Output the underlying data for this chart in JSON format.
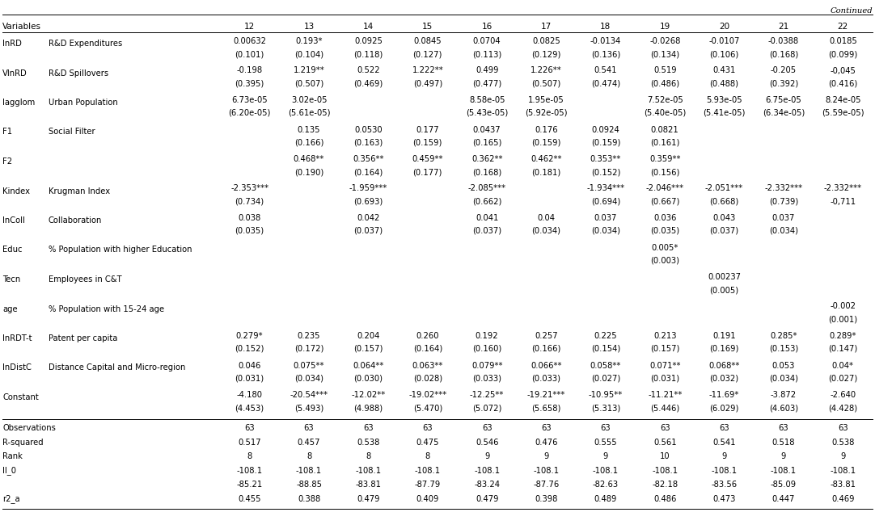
{
  "title": "Continued",
  "col_headers": [
    "12",
    "13",
    "14",
    "15",
    "16",
    "17",
    "18",
    "19",
    "20",
    "21",
    "22"
  ],
  "rows": [
    {
      "var": "lnRD",
      "label": "R&D Expenditures",
      "coef": [
        "0.00632",
        "0.193*",
        "0.0925",
        "0.0845",
        "0.0704",
        "0.0825",
        "-0.0134",
        "-0.0268",
        "-0.0107",
        "-0.0388",
        "0.0185"
      ],
      "se": [
        "(0.101)",
        "(0.104)",
        "(0.118)",
        "(0.127)",
        "(0.113)",
        "(0.129)",
        "(0.136)",
        "(0.134)",
        "(0.106)",
        "(0.168)",
        "(0.099)"
      ]
    },
    {
      "var": "VlnRD",
      "label": "R&D Spillovers",
      "coef": [
        "-0.198",
        "1.219**",
        "0.522",
        "1.222**",
        "0.499",
        "1.226**",
        "0.541",
        "0.519",
        "0.431",
        "-0.205",
        "-0,045"
      ],
      "se": [
        "(0.395)",
        "(0.507)",
        "(0.469)",
        "(0.497)",
        "(0.477)",
        "(0.507)",
        "(0.474)",
        "(0.486)",
        "(0.488)",
        "(0.392)",
        "(0.416)"
      ]
    },
    {
      "var": "lagglom",
      "label": "Urban Population",
      "coef": [
        "6.73e-05",
        "3.02e-05",
        "",
        "",
        "8.58e-05",
        "1.95e-05",
        "",
        "7.52e-05",
        "5.93e-05",
        "6.75e-05",
        "8.24e-05"
      ],
      "se": [
        "(6.20e-05)",
        "(5.61e-05)",
        "",
        "",
        "(5.43e-05)",
        "(5.92e-05)",
        "",
        "(5.40e-05)",
        "(5.41e-05)",
        "(6.34e-05)",
        "(5.59e-05)"
      ]
    },
    {
      "var": "F1",
      "label": "Social Filter",
      "coef": [
        "",
        "0.135",
        "0.0530",
        "0.177",
        "0.0437",
        "0.176",
        "0.0924",
        "0.0821",
        "",
        "",
        ""
      ],
      "se": [
        "",
        "(0.166)",
        "(0.163)",
        "(0.159)",
        "(0.165)",
        "(0.159)",
        "(0.159)",
        "(0.161)",
        "",
        "",
        ""
      ]
    },
    {
      "var": "F2",
      "label": "",
      "coef": [
        "",
        "0.468**",
        "0.356**",
        "0.459**",
        "0.362**",
        "0.462**",
        "0.353**",
        "0.359**",
        "",
        "",
        ""
      ],
      "se": [
        "",
        "(0.190)",
        "(0.164)",
        "(0.177)",
        "(0.168)",
        "(0.181)",
        "(0.152)",
        "(0.156)",
        "",
        "",
        ""
      ]
    },
    {
      "var": "Kindex",
      "label": "Krugman Index",
      "coef": [
        "-2.353***",
        "",
        "-1.959***",
        "",
        "-2.085***",
        "",
        "-1.934***",
        "-2.046***",
        "-2.051***",
        "-2.332***",
        "-2.332***"
      ],
      "se": [
        "(0.734)",
        "",
        "(0.693)",
        "",
        "(0.662)",
        "",
        "(0.694)",
        "(0.667)",
        "(0.668)",
        "(0.739)",
        "-0,711"
      ]
    },
    {
      "var": "lnColl",
      "label": "Collaboration",
      "coef": [
        "0.038",
        "",
        "0.042",
        "",
        "0.041",
        "0.04",
        "0.037",
        "0.036",
        "0.043",
        "0.037",
        ""
      ],
      "se": [
        "(0.035)",
        "",
        "(0.037)",
        "",
        "(0.037)",
        "(0.034)",
        "(0.034)",
        "(0.035)",
        "(0.037)",
        "(0.034)",
        ""
      ]
    },
    {
      "var": "Educ",
      "label": "% Population with higher Education",
      "coef": [
        "",
        "",
        "",
        "",
        "",
        "",
        "",
        "0.005*",
        "",
        "",
        ""
      ],
      "se": [
        "",
        "",
        "",
        "",
        "",
        "",
        "",
        "(0.003)",
        "",
        "",
        ""
      ]
    },
    {
      "var": "Tecn",
      "label": "Employees in C&T",
      "coef": [
        "",
        "",
        "",
        "",
        "",
        "",
        "",
        "",
        "0.00237",
        "",
        ""
      ],
      "se": [
        "",
        "",
        "",
        "",
        "",
        "",
        "",
        "",
        "(0.005)",
        "",
        ""
      ]
    },
    {
      "var": "age",
      "label": "% Population with 15-24 age",
      "coef": [
        "",
        "",
        "",
        "",
        "",
        "",
        "",
        "",
        "",
        "",
        "-0.002"
      ],
      "se": [
        "",
        "",
        "",
        "",
        "",
        "",
        "",
        "",
        "",
        "",
        "(0.001)"
      ]
    },
    {
      "var": "lnRDT-t",
      "label": "Patent per capita",
      "coef": [
        "0.279*",
        "0.235",
        "0.204",
        "0.260",
        "0.192",
        "0.257",
        "0.225",
        "0.213",
        "0.191",
        "0.285*",
        "0.289*"
      ],
      "se": [
        "(0.152)",
        "(0.172)",
        "(0.157)",
        "(0.164)",
        "(0.160)",
        "(0.166)",
        "(0.154)",
        "(0.157)",
        "(0.169)",
        "(0.153)",
        "(0.147)"
      ]
    },
    {
      "var": "lnDistC",
      "label": "Distance Capital and Micro-region",
      "coef": [
        "0.046",
        "0.075**",
        "0.064**",
        "0.063**",
        "0.079**",
        "0.066**",
        "0.058**",
        "0.071**",
        "0.068**",
        "0.053",
        "0.04*"
      ],
      "se": [
        "(0.031)",
        "(0.034)",
        "(0.030)",
        "(0.028)",
        "(0.033)",
        "(0.033)",
        "(0.027)",
        "(0.031)",
        "(0.032)",
        "(0.034)",
        "(0.027)"
      ]
    },
    {
      "var": "Constant",
      "label": "",
      "coef": [
        "-4.180",
        "-20.54***",
        "-12.02**",
        "-19.02***",
        "-12.25**",
        "-19.21***",
        "-10.95**",
        "-11.21**",
        "-11.69*",
        "-3.872",
        "-2.640"
      ],
      "se": [
        "(4.453)",
        "(5.493)",
        "(4.988)",
        "(5.470)",
        "(5.072)",
        "(5.658)",
        "(5.313)",
        "(5.446)",
        "(6.029)",
        "(4.603)",
        "(4.428)"
      ]
    }
  ],
  "bottom_rows": [
    {
      "label": "Observations",
      "values": [
        "63",
        "63",
        "63",
        "63",
        "63",
        "63",
        "63",
        "63",
        "63",
        "63",
        "63"
      ]
    },
    {
      "label": "R-squared",
      "values": [
        "0.517",
        "0.457",
        "0.538",
        "0.475",
        "0.546",
        "0.476",
        "0.555",
        "0.561",
        "0.541",
        "0.518",
        "0.538"
      ]
    },
    {
      "label": "Rank",
      "values": [
        "8",
        "8",
        "8",
        "8",
        "9",
        "9",
        "9",
        "10",
        "9",
        "9",
        "9"
      ]
    },
    {
      "label": "ll_0",
      "values": [
        "-108.1",
        "-108.1",
        "-108.1",
        "-108.1",
        "-108.1",
        "-108.1",
        "-108.1",
        "-108.1",
        "-108.1",
        "-108.1",
        "-108.1"
      ]
    },
    {
      "label": "",
      "values": [
        "-85.21",
        "-88.85",
        "-83.81",
        "-87.79",
        "-83.24",
        "-87.76",
        "-82.63",
        "-82.18",
        "-83.56",
        "-85.09",
        "-83.81"
      ]
    },
    {
      "label": "r2_a",
      "values": [
        "0.455",
        "0.388",
        "0.479",
        "0.409",
        "0.479",
        "0.398",
        "0.489",
        "0.486",
        "0.473",
        "0.447",
        "0.469"
      ]
    }
  ],
  "bg_color": "#ffffff",
  "text_color": "#000000",
  "font_size": 7.2,
  "header_font_size": 7.5
}
